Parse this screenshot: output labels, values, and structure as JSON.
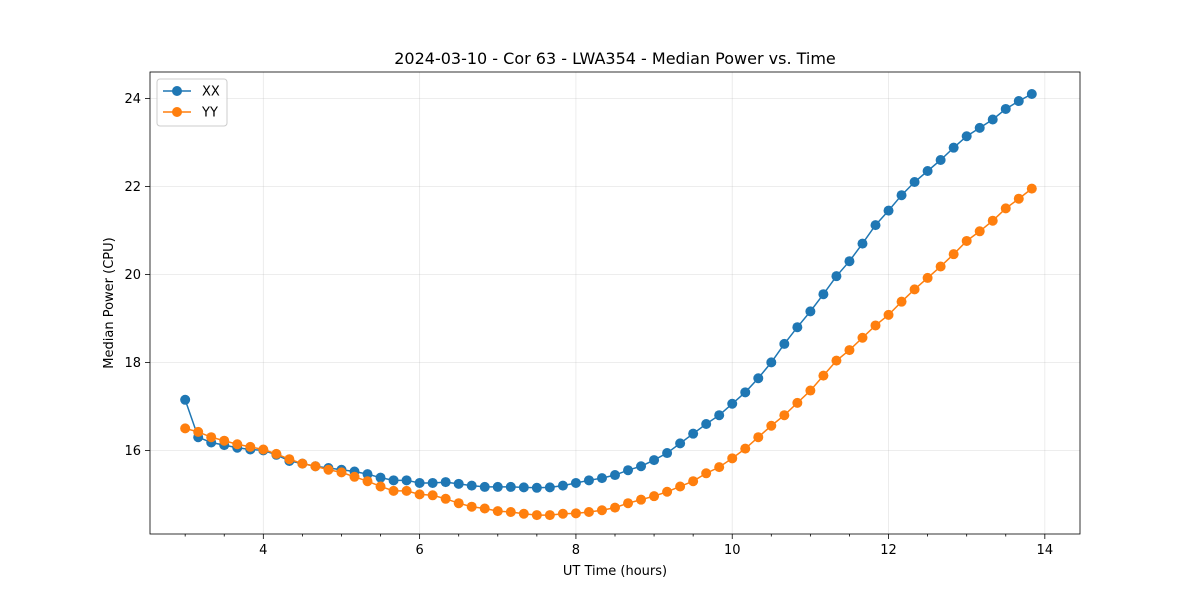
{
  "chart_data": {
    "type": "line",
    "title": "2024-03-10 - Cor 63 - LWA354 - Median Power vs. Time",
    "xlabel": "UT Time (hours)",
    "ylabel": "Median Power (CPU)",
    "xlim": [
      2.55,
      14.45
    ],
    "ylim": [
      14.1,
      24.6
    ],
    "xticks": [
      4,
      6,
      8,
      10,
      12,
      14
    ],
    "yticks": [
      16,
      18,
      20,
      22,
      24
    ],
    "grid": true,
    "legend_position": "top-left",
    "x": [
      3.0,
      3.1667,
      3.3333,
      3.5,
      3.6667,
      3.8333,
      4.0,
      4.1667,
      4.3333,
      4.5,
      4.6667,
      4.8333,
      5.0,
      5.1667,
      5.3333,
      5.5,
      5.6667,
      5.8333,
      6.0,
      6.1667,
      6.3333,
      6.5,
      6.6667,
      6.8333,
      7.0,
      7.1667,
      7.3333,
      7.5,
      7.6667,
      7.8333,
      8.0,
      8.1667,
      8.3333,
      8.5,
      8.6667,
      8.8333,
      9.0,
      9.1667,
      9.3333,
      9.5,
      9.6667,
      9.8333,
      10.0,
      10.1667,
      10.3333,
      10.5,
      10.6667,
      10.8333,
      11.0,
      11.1667,
      11.3333,
      11.5,
      11.6667,
      11.8333,
      12.0,
      12.1667,
      12.3333,
      12.5,
      12.6667,
      12.8333,
      13.0,
      13.1667,
      13.3333,
      13.5,
      13.6667,
      13.8333
    ],
    "series": [
      {
        "name": "XX",
        "color": "#1f77b4",
        "values": [
          17.15,
          16.3,
          16.18,
          16.12,
          16.06,
          16.02,
          16.0,
          15.9,
          15.76,
          15.7,
          15.64,
          15.6,
          15.56,
          15.52,
          15.46,
          15.38,
          15.32,
          15.32,
          15.26,
          15.26,
          15.28,
          15.24,
          15.2,
          15.17,
          15.17,
          15.17,
          15.16,
          15.15,
          15.16,
          15.2,
          15.26,
          15.32,
          15.37,
          15.44,
          15.55,
          15.64,
          15.78,
          15.94,
          16.16,
          16.38,
          16.6,
          16.8,
          17.06,
          17.32,
          17.64,
          18.0,
          18.42,
          18.8,
          19.16,
          19.55,
          19.96,
          20.3,
          20.7,
          21.12,
          21.45,
          21.8,
          22.1,
          22.35,
          22.6,
          22.88,
          23.14,
          23.33,
          23.52,
          23.76,
          23.94,
          24.1
        ]
      },
      {
        "name": "YY",
        "color": "#ff7f0e",
        "values": [
          16.5,
          16.42,
          16.3,
          16.22,
          16.14,
          16.08,
          16.02,
          15.92,
          15.8,
          15.7,
          15.64,
          15.56,
          15.5,
          15.4,
          15.3,
          15.18,
          15.08,
          15.08,
          15.0,
          14.98,
          14.9,
          14.8,
          14.72,
          14.68,
          14.62,
          14.6,
          14.56,
          14.53,
          14.53,
          14.56,
          14.57,
          14.6,
          14.64,
          14.7,
          14.8,
          14.88,
          14.96,
          15.06,
          15.18,
          15.3,
          15.48,
          15.62,
          15.82,
          16.04,
          16.3,
          16.56,
          16.8,
          17.08,
          17.36,
          17.7,
          18.04,
          18.28,
          18.56,
          18.84,
          19.08,
          19.38,
          19.66,
          19.92,
          20.18,
          20.46,
          20.76,
          20.98,
          21.22,
          21.5,
          21.72,
          21.95
        ]
      }
    ]
  }
}
